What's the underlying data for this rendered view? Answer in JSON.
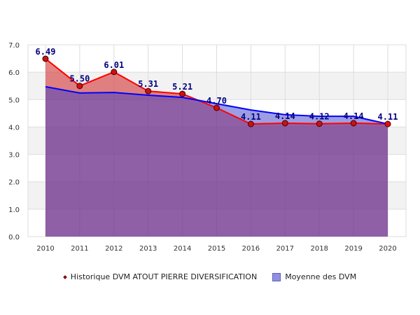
{
  "chart_data": {
    "type": "area",
    "categories": [
      "2010",
      "2011",
      "2012",
      "2013",
      "2014",
      "2015",
      "2016",
      "2017",
      "2018",
      "2019",
      "2020"
    ],
    "ylim": [
      0,
      7
    ],
    "yticks": [
      "0.0",
      "1.0",
      "2.0",
      "3.0",
      "4.0",
      "5.0",
      "6.0",
      "7.0"
    ],
    "grid": true,
    "legend_position": "bottom",
    "series": [
      {
        "name": "Historique DVM ATOUT PIERRE DIVERSIFICATION",
        "color": "#ff0000",
        "values": [
          6.49,
          5.5,
          6.01,
          5.31,
          5.21,
          4.7,
          4.11,
          4.14,
          4.12,
          4.14,
          4.11
        ],
        "labels": [
          "6.49",
          "5.50",
          "6.01",
          "5.31",
          "5.21",
          "4.70",
          "4.11",
          "4.14",
          "4.12",
          "4.14",
          "4.11"
        ]
      },
      {
        "name": "Moyenne des DVM",
        "color": "#0000ff",
        "values": [
          5.47,
          5.24,
          5.26,
          5.16,
          5.08,
          4.85,
          4.62,
          4.45,
          4.39,
          4.39,
          4.11
        ]
      }
    ]
  }
}
